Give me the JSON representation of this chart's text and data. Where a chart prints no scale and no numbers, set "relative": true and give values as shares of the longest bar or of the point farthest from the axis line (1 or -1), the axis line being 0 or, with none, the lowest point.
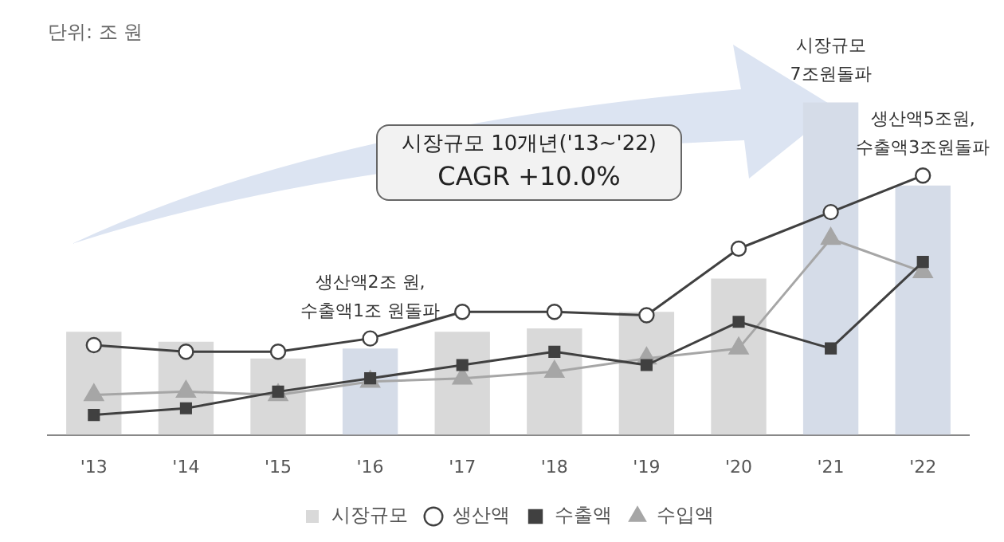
{
  "chart_data": {
    "type": "bar",
    "relative": true,
    "categories": [
      "'13",
      "'14",
      "'15",
      "'16",
      "'17",
      "'18",
      "'19",
      "'20",
      "'21",
      "'22"
    ],
    "series": [
      {
        "name": "시장규모",
        "color": "#d9d9d9",
        "colors": [
          "#d9d9d9",
          "#d9d9d9",
          "#d9d9d9",
          "#d5dce8",
          "#d9d9d9",
          "#d9d9d9",
          "#d9d9d9",
          "#d9d9d9",
          "#d5dce8",
          "#d5dce8"
        ],
        "values": [
          0.31,
          0.28,
          0.23,
          0.26,
          0.31,
          0.32,
          0.37,
          0.47,
          1,
          0.75
        ]
      },
      {
        "name": "생산액",
        "type": "line",
        "color": "#404040",
        "marker": "circle",
        "values": [
          0.27,
          0.25,
          0.25,
          0.29,
          0.37,
          0.37,
          0.36,
          0.56,
          0.67,
          0.78
        ]
      },
      {
        "name": "수출액",
        "type": "line",
        "color": "#404040",
        "marker": "square",
        "values": [
          0.06,
          0.08,
          0.13,
          0.17,
          0.21,
          0.25,
          0.21,
          0.34,
          0.26,
          0.52
        ]
      },
      {
        "name": "수입액",
        "type": "line",
        "color": "#a6a6a6",
        "marker": "triangle",
        "values": [
          0.12,
          0.13,
          0.12,
          0.16,
          0.17,
          0.19,
          0.23,
          0.26,
          0.59,
          0.49
        ]
      }
    ],
    "annotations": [
      "단위: 조 원",
      "시장규모 10개년('13~'22)",
      "CAGR +10.0%",
      {
        "text": "생산액2조 원,\n수출액1조 원돌파",
        "x": "'16",
        "y": 0.29
      },
      {
        "text": "시장규모\n7조원돌파",
        "x": "'21",
        "y": 1
      },
      {
        "text": "생산액5조원,\n수출액3조원돌파",
        "x": "'22",
        "y": 0.78
      }
    ],
    "legend": "bottom",
    "grid": false
  }
}
